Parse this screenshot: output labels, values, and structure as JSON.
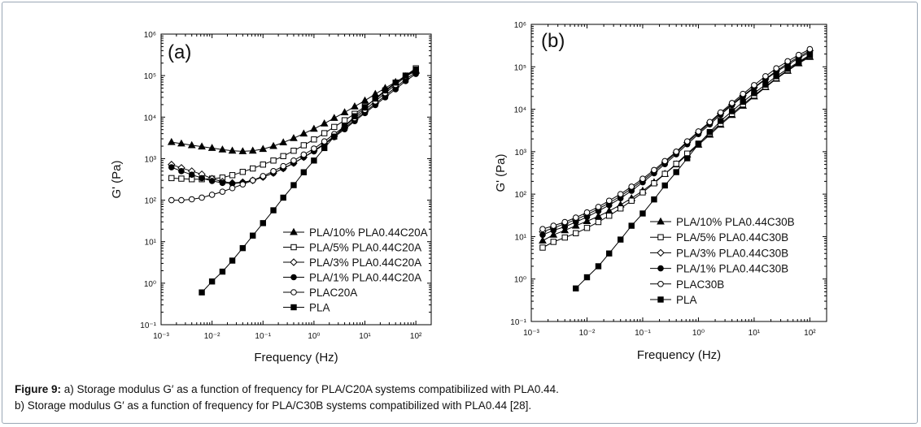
{
  "caption": {
    "label": "Figure 9:",
    "line1": " a) Storage modulus G′ as a function of frequency for PLA/C20A systems compatibilized with PLA0.44.",
    "line2": "b) Storage modulus G′ as a function of frequency for PLA/C30B systems compatibilized with PLA0.44 [28]."
  },
  "chart_data": [
    {
      "type": "line",
      "panel_label": "(a)",
      "xlabel": "Frequency (Hz)",
      "ylabel": "G' (Pa)",
      "xscale": "log",
      "yscale": "log",
      "xlim": [
        0.001,
        200
      ],
      "ylim": [
        0.1,
        1000000
      ],
      "xticks": [
        0.001,
        0.01,
        0.1,
        1,
        10,
        100
      ],
      "xtick_labels": [
        "10⁻³",
        "10⁻²",
        "10⁻¹",
        "10⁰",
        "10¹",
        "10²"
      ],
      "yticks": [
        0.1,
        1,
        10,
        100,
        1000,
        10000,
        100000,
        1000000
      ],
      "ytick_labels": [
        "10⁻¹",
        "10⁰",
        "10¹",
        "10²",
        "10³",
        "10⁴",
        "10⁵",
        "10⁶"
      ],
      "legend_position": "bottom-right",
      "series": [
        {
          "name": "PLA/10% PLA0.44C20A",
          "marker": "triangle-filled",
          "x": [
            0.0016,
            0.0025,
            0.004,
            0.0063,
            0.01,
            0.016,
            0.025,
            0.04,
            0.063,
            0.1,
            0.16,
            0.25,
            0.4,
            0.63,
            1,
            1.6,
            2.5,
            4,
            6.3,
            10,
            16,
            25,
            40,
            63,
            100
          ],
          "y": [
            2500,
            2300,
            2100,
            1950,
            1800,
            1650,
            1550,
            1500,
            1550,
            1700,
            2000,
            2450,
            3100,
            4000,
            5200,
            7000,
            9500,
            13000,
            18000,
            25000,
            36000,
            50000,
            70000,
            95000,
            130000
          ]
        },
        {
          "name": "PLA/5% PLA0.44C20A",
          "marker": "square-open",
          "x": [
            0.0016,
            0.0025,
            0.004,
            0.0063,
            0.01,
            0.016,
            0.025,
            0.04,
            0.063,
            0.1,
            0.16,
            0.25,
            0.4,
            0.63,
            1,
            1.6,
            2.5,
            4,
            6.3,
            10,
            16,
            25,
            40,
            63,
            100
          ],
          "y": [
            340,
            330,
            320,
            320,
            330,
            350,
            400,
            480,
            580,
            720,
            900,
            1150,
            1550,
            2100,
            2900,
            4100,
            5800,
            8400,
            12000,
            18000,
            27000,
            42000,
            65000,
            100000,
            150000
          ]
        },
        {
          "name": "PLA/3% PLA0.44C20A",
          "marker": "diamond-open",
          "x": [
            0.0016,
            0.0025,
            0.004,
            0.0063,
            0.01,
            0.016,
            0.025,
            0.04,
            0.063,
            0.1,
            0.16,
            0.25,
            0.4,
            0.63,
            1,
            1.6,
            2.5,
            4,
            6.3,
            10,
            16,
            25,
            40,
            63,
            100
          ],
          "y": [
            720,
            600,
            500,
            420,
            330,
            280,
            260,
            270,
            300,
            360,
            450,
            580,
            780,
            1080,
            1550,
            2300,
            3500,
            5500,
            8600,
            13500,
            21000,
            33000,
            52000,
            82000,
            120000
          ]
        },
        {
          "name": "PLA/1% PLA0.44C20A",
          "marker": "circle-filled",
          "x": [
            0.0016,
            0.0025,
            0.004,
            0.0063,
            0.01,
            0.016,
            0.025,
            0.04,
            0.063,
            0.1,
            0.16,
            0.25,
            0.4,
            0.63,
            1,
            1.6,
            2.5,
            4,
            6.3,
            10,
            16,
            25,
            40,
            63,
            100
          ],
          "y": [
            620,
            500,
            410,
            340,
            290,
            260,
            250,
            265,
            300,
            360,
            450,
            580,
            780,
            1080,
            1500,
            2200,
            3300,
            5100,
            8000,
            12500,
            19500,
            30000,
            47000,
            74000,
            110000
          ]
        },
        {
          "name": "PLAC20A",
          "marker": "circle-open",
          "x": [
            0.0016,
            0.0025,
            0.004,
            0.0063,
            0.01,
            0.016,
            0.025,
            0.04,
            0.063,
            0.1,
            0.16,
            0.25,
            0.4,
            0.63,
            1,
            1.6,
            2.5,
            4,
            6.3,
            10,
            16,
            25,
            40,
            63,
            100
          ],
          "y": [
            100,
            100,
            105,
            115,
            135,
            160,
            195,
            240,
            300,
            380,
            500,
            660,
            900,
            1250,
            1750,
            2600,
            3900,
            6000,
            9500,
            15000,
            24000,
            38000,
            60000,
            95000,
            140000
          ]
        },
        {
          "name": "PLA",
          "marker": "square-filled",
          "x": [
            0.0063,
            0.01,
            0.016,
            0.025,
            0.04,
            0.063,
            0.1,
            0.16,
            0.25,
            0.4,
            0.63,
            1,
            1.6,
            2.5,
            4,
            6.3,
            10,
            16,
            25,
            40,
            63,
            100
          ],
          "y": [
            0.6,
            1.1,
            1.9,
            3.5,
            7,
            14,
            28,
            57,
            115,
            230,
            470,
            900,
            1800,
            3400,
            6000,
            10500,
            17000,
            28000,
            44000,
            68000,
            100000,
            140000
          ]
        }
      ]
    },
    {
      "type": "line",
      "panel_label": "(b)",
      "xlabel": "Frequency (Hz)",
      "ylabel": "G' (Pa)",
      "xscale": "log",
      "yscale": "log",
      "xlim": [
        0.001,
        200
      ],
      "ylim": [
        0.1,
        1000000
      ],
      "xticks": [
        0.001,
        0.01,
        0.1,
        1,
        10,
        100
      ],
      "xtick_labels": [
        "10⁻³",
        "10⁻²",
        "10⁻¹",
        "10⁰",
        "10¹",
        "10²"
      ],
      "yticks": [
        0.1,
        1,
        10,
        100,
        1000,
        10000,
        100000,
        1000000
      ],
      "ytick_labels": [
        "10⁻¹",
        "10⁰",
        "10¹",
        "10²",
        "10³",
        "10⁴",
        "10⁵",
        "10⁶"
      ],
      "legend_position": "bottom-right",
      "series": [
        {
          "name": "PLA/10% PLA0.44C30B",
          "marker": "triangle-filled",
          "x": [
            0.0016,
            0.0025,
            0.004,
            0.0063,
            0.01,
            0.016,
            0.025,
            0.04,
            0.063,
            0.1,
            0.16,
            0.25,
            0.4,
            0.63,
            1,
            1.6,
            2.5,
            4,
            6.3,
            10,
            16,
            25,
            40,
            63,
            100
          ],
          "y": [
            8,
            11,
            14,
            18,
            23,
            30,
            40,
            56,
            80,
            120,
            190,
            300,
            500,
            850,
            1450,
            2500,
            4300,
            7300,
            12000,
            20000,
            33000,
            52000,
            80000,
            120000,
            170000
          ]
        },
        {
          "name": "PLA/5% PLA0.44C30B",
          "marker": "square-open",
          "x": [
            0.0016,
            0.0025,
            0.004,
            0.0063,
            0.01,
            0.016,
            0.025,
            0.04,
            0.063,
            0.1,
            0.16,
            0.25,
            0.4,
            0.63,
            1,
            1.6,
            2.5,
            4,
            6.3,
            10,
            16,
            25,
            40,
            63,
            100
          ],
          "y": [
            5.5,
            7.5,
            9.5,
            12,
            16,
            22,
            31,
            46,
            70,
            110,
            180,
            300,
            520,
            900,
            1550,
            2700,
            4600,
            7800,
            13000,
            21000,
            34000,
            54000,
            83000,
            125000,
            180000
          ]
        },
        {
          "name": "PLA/3% PLA0.44C30B",
          "marker": "diamond-open",
          "x": [
            0.0016,
            0.0025,
            0.004,
            0.0063,
            0.01,
            0.016,
            0.025,
            0.04,
            0.063,
            0.1,
            0.16,
            0.25,
            0.4,
            0.63,
            1,
            1.6,
            2.5,
            4,
            6.3,
            10,
            16,
            25,
            40,
            63,
            100
          ],
          "y": [
            13,
            16,
            20,
            25,
            33,
            45,
            62,
            90,
            135,
            210,
            340,
            560,
            950,
            1650,
            2800,
            4800,
            8000,
            13000,
            21000,
            33000,
            52000,
            80000,
            120000,
            170000,
            240000
          ]
        },
        {
          "name": "PLA/1% PLA0.44C30B",
          "marker": "circle-filled",
          "x": [
            0.0016,
            0.0025,
            0.004,
            0.0063,
            0.01,
            0.016,
            0.025,
            0.04,
            0.063,
            0.1,
            0.16,
            0.25,
            0.4,
            0.63,
            1,
            1.6,
            2.5,
            4,
            6.3,
            10,
            16,
            25,
            40,
            63,
            100
          ],
          "y": [
            11,
            14,
            17,
            22,
            29,
            40,
            55,
            80,
            120,
            190,
            310,
            510,
            870,
            1500,
            2600,
            4400,
            7400,
            12500,
            20000,
            32000,
            50000,
            76000,
            110000,
            160000,
            220000
          ]
        },
        {
          "name": "PLAC30B",
          "marker": "circle-open",
          "x": [
            0.0016,
            0.0025,
            0.004,
            0.0063,
            0.01,
            0.016,
            0.025,
            0.04,
            0.063,
            0.1,
            0.16,
            0.25,
            0.4,
            0.63,
            1,
            1.6,
            2.5,
            4,
            6.3,
            10,
            16,
            25,
            40,
            63,
            100
          ],
          "y": [
            15,
            18,
            22,
            28,
            37,
            50,
            70,
            100,
            150,
            230,
            370,
            600,
            1000,
            1750,
            3000,
            5000,
            8400,
            14000,
            23000,
            37000,
            60000,
            92000,
            135000,
            190000,
            260000
          ]
        },
        {
          "name": "PLA",
          "marker": "square-filled",
          "x": [
            0.0063,
            0.01,
            0.016,
            0.025,
            0.04,
            0.063,
            0.1,
            0.16,
            0.25,
            0.4,
            0.63,
            1,
            1.6,
            2.5,
            4,
            6.3,
            10,
            16,
            25,
            40,
            63,
            100
          ],
          "y": [
            0.6,
            1.1,
            2,
            4,
            8.5,
            18,
            35,
            75,
            160,
            330,
            700,
            1500,
            2900,
            5300,
            9000,
            15000,
            24000,
            38000,
            60000,
            90000,
            130000,
            190000
          ]
        }
      ]
    }
  ]
}
